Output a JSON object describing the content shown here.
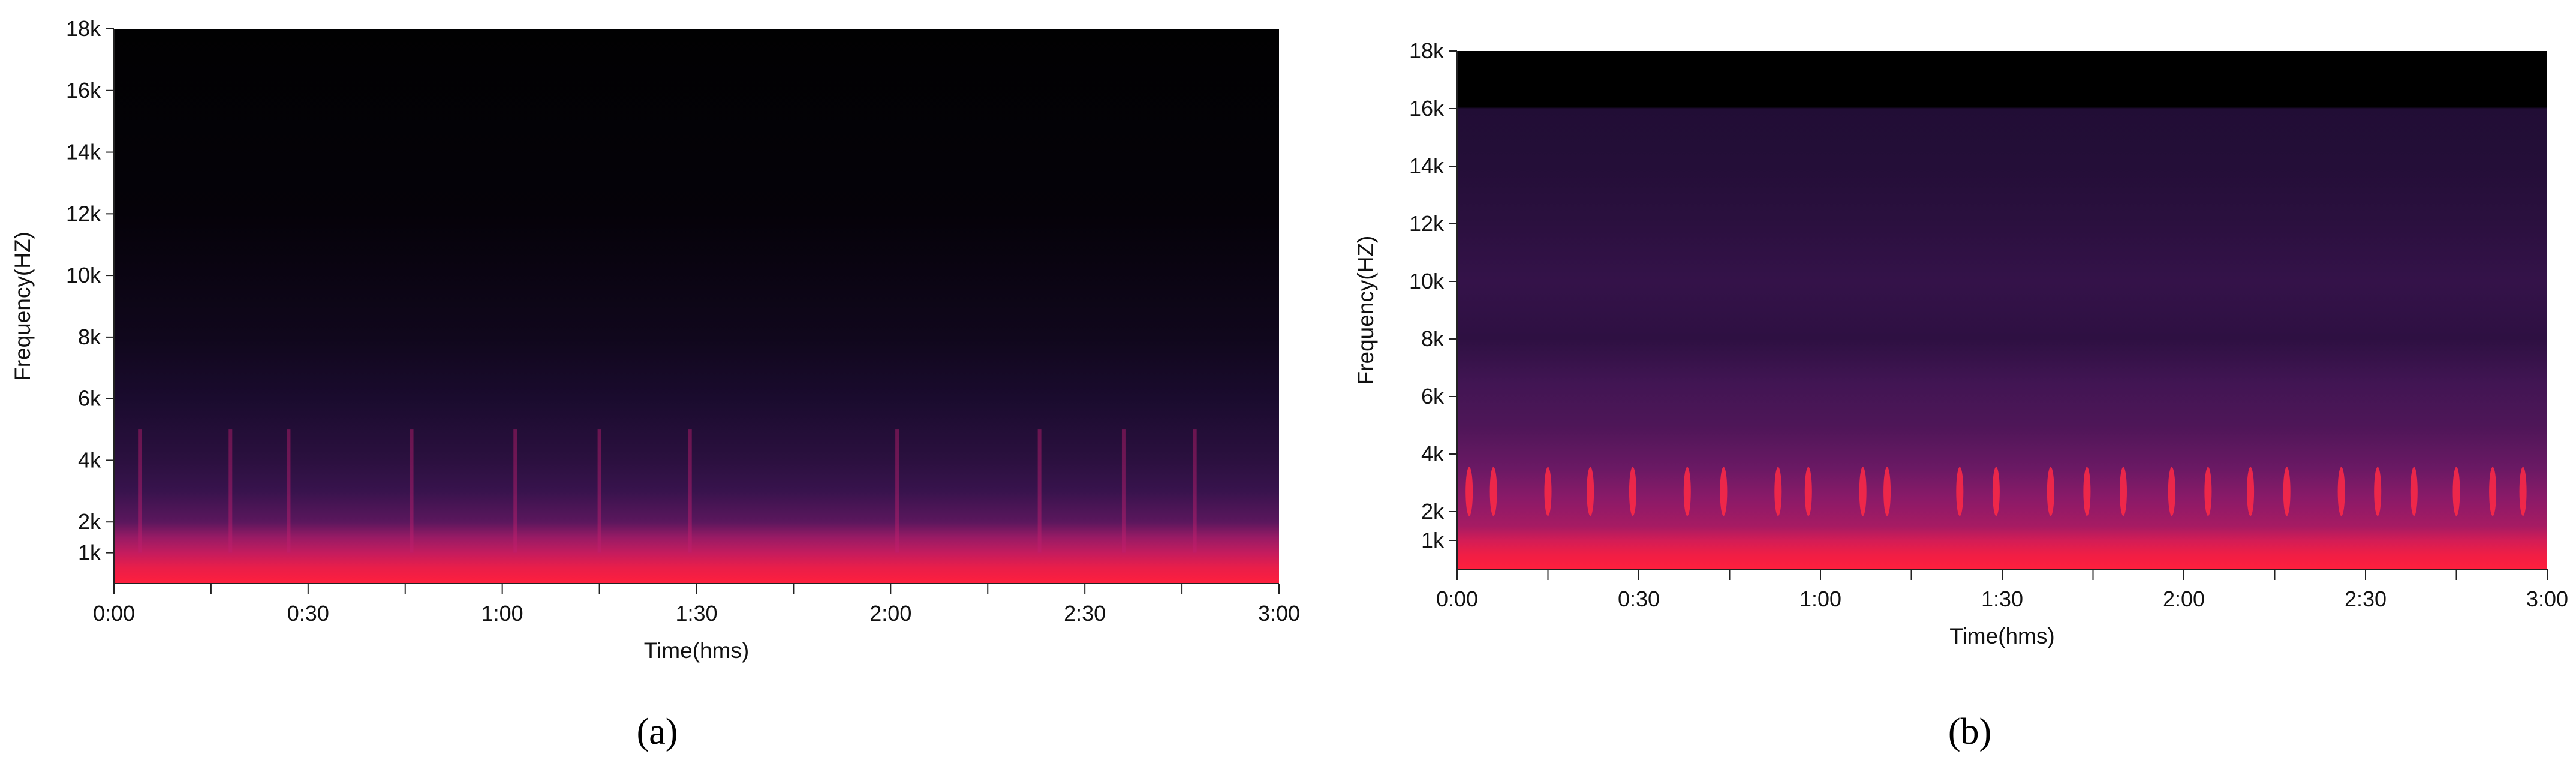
{
  "chart_data": [
    {
      "type": "heatmap",
      "panel_label": "a",
      "title": "",
      "xlabel": "Time(hms)",
      "ylabel": "Frequency(HZ)",
      "x_ticks": [
        "0:00",
        "0:30",
        "1:00",
        "1:30",
        "2:00",
        "2:30",
        "3:00"
      ],
      "x_tick_seconds": [
        0,
        30,
        60,
        90,
        120,
        150,
        180
      ],
      "xlim_seconds": [
        0,
        180
      ],
      "y_ticks": [
        "1k",
        "2k",
        "4k",
        "6k",
        "8k",
        "10k",
        "12k",
        "14k",
        "16k",
        "18k"
      ],
      "y_tick_hz": [
        1000,
        2000,
        4000,
        6000,
        8000,
        10000,
        12000,
        14000,
        16000,
        18000
      ],
      "ylim_hz": [
        0,
        18000
      ],
      "colormap": [
        "#000000",
        "#1a0b2e",
        "#3b1450",
        "#7a1a6a",
        "#c41c5e",
        "#ff1f3d"
      ],
      "energy_profile": {
        "description": "",
        "hz": [
          0,
          500,
          1000,
          1500,
          2000,
          3000,
          4000,
          6000,
          8000,
          12000,
          18000
        ],
        "intensity": [
          1.0,
          0.93,
          0.8,
          0.68,
          0.5,
          0.38,
          0.3,
          0.2,
          0.12,
          0.04,
          0.01
        ]
      },
      "transients_seconds": [
        4,
        18,
        27,
        46,
        62,
        75,
        89,
        121,
        143,
        156,
        167
      ]
    },
    {
      "type": "heatmap",
      "panel_label": "b",
      "title": "",
      "xlabel": "Time(hms)",
      "ylabel": "Frequency(HZ)",
      "x_ticks": [
        "0:00",
        "0:30",
        "1:00",
        "1:30",
        "2:00",
        "2:30",
        "3:00"
      ],
      "x_tick_seconds": [
        0,
        30,
        60,
        90,
        120,
        150,
        180
      ],
      "xlim_seconds": [
        0,
        180
      ],
      "y_ticks": [
        "1k",
        "2k",
        "4k",
        "6k",
        "8k",
        "10k",
        "12k",
        "14k",
        "16k",
        "18k"
      ],
      "y_tick_hz": [
        1000,
        2000,
        4000,
        6000,
        8000,
        10000,
        12000,
        14000,
        16000,
        18000
      ],
      "ylim_hz": [
        0,
        18000
      ],
      "colormap": [
        "#000000",
        "#1a0b2e",
        "#3b1450",
        "#7a1a6a",
        "#c41c5e",
        "#ff1f3d"
      ],
      "energy_profile": {
        "hz": [
          0,
          500,
          1000,
          1500,
          2500,
          3500,
          5000,
          6500,
          8000,
          10000,
          12000,
          14000,
          16000,
          16050,
          18000
        ],
        "intensity": [
          1.0,
          0.95,
          0.85,
          0.72,
          0.64,
          0.55,
          0.46,
          0.42,
          0.32,
          0.36,
          0.3,
          0.26,
          0.24,
          0.0,
          0.0
        ]
      },
      "bird_call_events_seconds": [
        2,
        6,
        15,
        22,
        29,
        38,
        44,
        53,
        58,
        67,
        71,
        83,
        89,
        98,
        104,
        110,
        118,
        124,
        131,
        137,
        146,
        152,
        158,
        165,
        171,
        176
      ]
    }
  ],
  "captions": {
    "a": "(a)",
    "b": "(b)"
  }
}
